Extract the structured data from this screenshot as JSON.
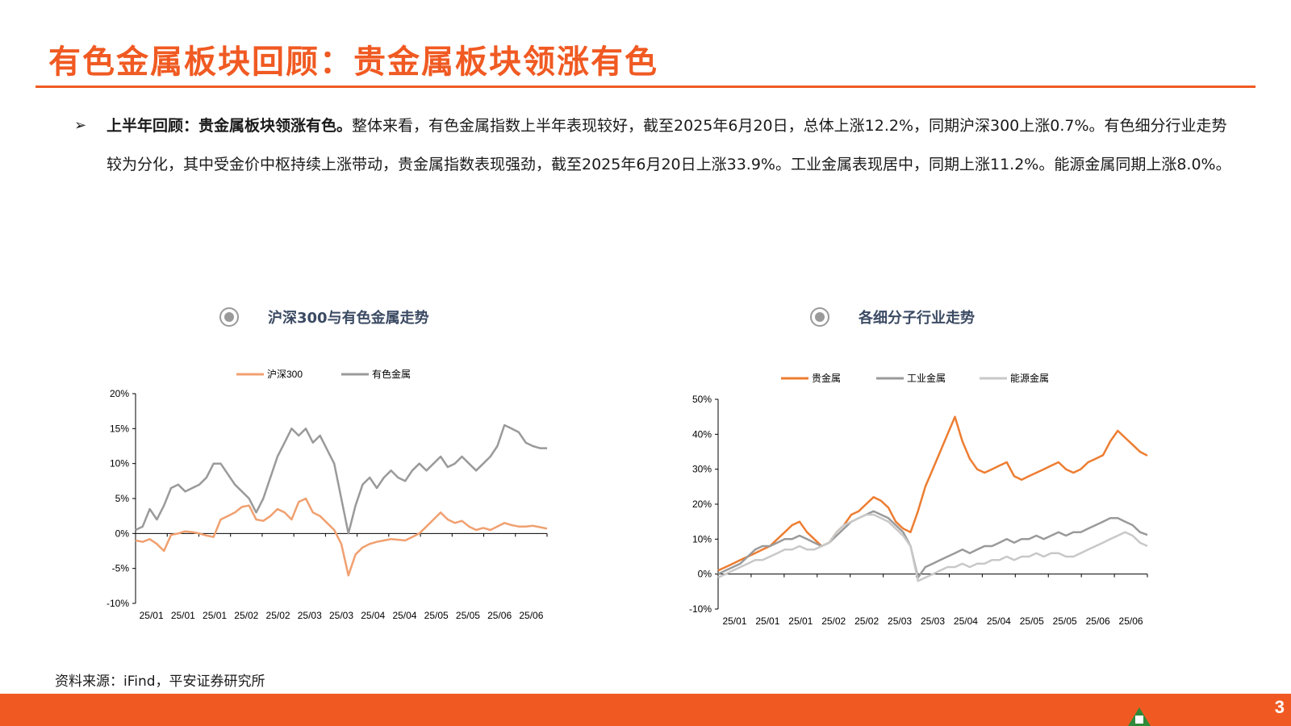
{
  "page": {
    "title": "有色金属板块回顾：贵金属板块领涨有色",
    "bullet": {
      "marker": "➢",
      "bold": "上半年回顾：贵金属板块领涨有色。",
      "text": "整体来看，有色金属指数上半年表现较好，截至2025年6月20日，总体上涨12.2%，同期沪深300上涨0.7%。有色细分行业走势较为分化，其中受金价中枢持续上涨带动，贵金属指数表现强劲，截至2025年6月20日上涨33.9%。工业金属表现居中，同期上涨11.2%。能源金属同期上涨8.0%。"
    },
    "source": "资料来源：iFind，平安证券研究所",
    "page_number": "3",
    "colors": {
      "accent": "#f05a22",
      "orange_series": "#f0a070",
      "gray_series": "#9a9a9a",
      "gold_series": "#ed7d31",
      "light_series": "#c8c8c8",
      "logo_green": "#2f8a3a"
    }
  },
  "chart_data": [
    {
      "type": "line",
      "title": "沪深300与有色金属走势",
      "x_ticks": [
        "25/01",
        "25/01",
        "25/01",
        "25/02",
        "25/02",
        "25/03",
        "25/03",
        "25/04",
        "25/04",
        "25/05",
        "25/05",
        "25/06",
        "25/06"
      ],
      "ylim": [
        -10,
        20
      ],
      "y_ticks": [
        "-10%",
        "-5%",
        "0%",
        "5%",
        "10%",
        "15%",
        "20%"
      ],
      "legend": "top-center",
      "series": [
        {
          "name": "沪深300",
          "color": "#f0a070",
          "values": [
            -1,
            -1.2,
            -0.8,
            -1.5,
            -2.5,
            -0.2,
            0,
            0.3,
            0.2,
            0,
            -0.3,
            -0.5,
            2,
            2.5,
            3,
            3.8,
            4,
            2,
            1.8,
            2.5,
            3.5,
            3,
            2,
            4.5,
            5,
            3,
            2.5,
            1.5,
            0.5,
            -1.5,
            -6,
            -3,
            -2,
            -1.5,
            -1.2,
            -1,
            -0.8,
            -0.9,
            -1,
            -0.5,
            0,
            1,
            2,
            3,
            2,
            1.5,
            1.8,
            1,
            0.5,
            0.8,
            0.5,
            1,
            1.5,
            1.2,
            1,
            1,
            1.1,
            0.9,
            0.7
          ]
        },
        {
          "name": "有色金属",
          "color": "#9a9a9a",
          "values": [
            0.5,
            1,
            3.5,
            2,
            4,
            6.5,
            7,
            6,
            6.5,
            7,
            8,
            10,
            10,
            8.5,
            7,
            6,
            5,
            3,
            5,
            8,
            11,
            13,
            15,
            14,
            15,
            13,
            14,
            12,
            10,
            5,
            0,
            4,
            7,
            8,
            6.5,
            8,
            9,
            8,
            7.5,
            9,
            10,
            9,
            10,
            11,
            9.5,
            10,
            11,
            10,
            9,
            10,
            11,
            12.5,
            15.5,
            15,
            14.5,
            13,
            12.5,
            12.2,
            12.2
          ]
        }
      ]
    },
    {
      "type": "line",
      "title": "各细分子行业走势",
      "x_ticks": [
        "25/01",
        "25/01",
        "25/01",
        "25/02",
        "25/02",
        "25/03",
        "25/03",
        "25/04",
        "25/04",
        "25/05",
        "25/05",
        "25/06",
        "25/06"
      ],
      "ylim": [
        -10,
        50
      ],
      "y_ticks": [
        "-10%",
        "0%",
        "10%",
        "20%",
        "30%",
        "40%",
        "50%"
      ],
      "legend": "top-center",
      "series": [
        {
          "name": "贵金属",
          "color": "#ed7d31",
          "values": [
            1,
            2,
            3,
            4,
            5,
            6,
            7,
            8,
            10,
            12,
            14,
            15,
            12,
            10,
            8,
            9,
            12,
            14,
            17,
            18,
            20,
            22,
            21,
            19,
            15,
            13,
            12,
            18,
            25,
            30,
            35,
            40,
            45,
            38,
            33,
            30,
            29,
            30,
            31,
            32,
            28,
            27,
            28,
            29,
            30,
            31,
            32,
            30,
            29,
            30,
            32,
            33,
            34,
            38,
            41,
            39,
            37,
            35,
            33.9
          ]
        },
        {
          "name": "工业金属",
          "color": "#9a9a9a",
          "values": [
            0,
            1,
            2,
            3,
            5,
            7,
            8,
            8,
            9,
            10,
            10,
            11,
            10,
            9,
            8,
            9,
            11,
            13,
            15,
            16,
            17,
            18,
            17,
            16,
            14,
            12,
            8,
            -1,
            2,
            3,
            4,
            5,
            6,
            7,
            6,
            7,
            8,
            8,
            9,
            10,
            9,
            10,
            10,
            11,
            10,
            11,
            12,
            11,
            12,
            12,
            13,
            14,
            15,
            16,
            16,
            15,
            14,
            12,
            11.2
          ]
        },
        {
          "name": "能源金属",
          "color": "#c8c8c8",
          "values": [
            -1,
            0,
            1,
            2,
            3,
            4,
            4,
            5,
            6,
            7,
            7,
            8,
            7,
            7,
            8,
            9,
            12,
            14,
            15,
            16,
            17,
            17,
            16,
            15,
            13,
            11,
            8,
            -2,
            -1,
            0,
            1,
            2,
            2,
            3,
            2,
            3,
            3,
            4,
            4,
            5,
            4,
            5,
            5,
            6,
            5,
            6,
            6,
            5,
            5,
            6,
            7,
            8,
            9,
            10,
            11,
            12,
            11,
            9,
            8.0
          ]
        }
      ]
    }
  ]
}
